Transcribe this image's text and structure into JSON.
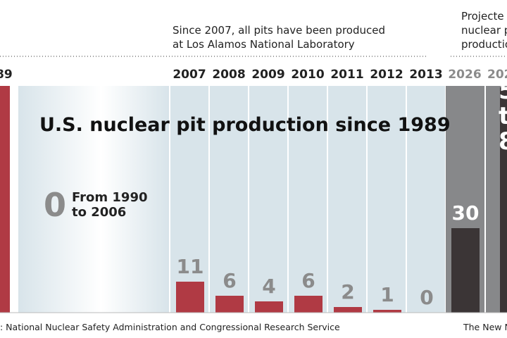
{
  "chart_data": {
    "type": "bar",
    "title": "U.S. nuclear pit production since 1989",
    "note_2007": [
      "Since 2007, all pits have been produced",
      "at Los Alamos National Laboratory"
    ],
    "note_projected": [
      "Projecte",
      "nuclear p",
      "productio"
    ],
    "year_1989_fragment": "89",
    "gap_value": "0",
    "gap_label": [
      "From 1990",
      "to 2006"
    ],
    "categories": [
      "2007",
      "2008",
      "2009",
      "2010",
      "2011",
      "2012",
      "2013",
      "2026",
      "202"
    ],
    "values": [
      11,
      6,
      4,
      6,
      2,
      1,
      0,
      30,
      80
    ],
    "value_labels": [
      "11",
      "6",
      "4",
      "6",
      "2",
      "1",
      "0",
      "30",
      ""
    ],
    "projected_label_lines": [
      "5",
      "t",
      "8"
    ],
    "ylim": [
      0,
      80
    ],
    "source": ": National Nuclear Safety Administration and Congressional Research Service",
    "credit": "The New N",
    "colors": {
      "bar": "#b03a44",
      "projected_bar": "#3b3536",
      "panel": "#d8e4ea",
      "projected_panel": "#87888a",
      "value_text": "#8b8b8b"
    }
  }
}
